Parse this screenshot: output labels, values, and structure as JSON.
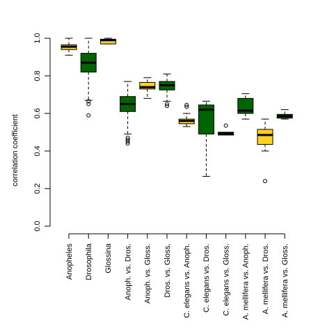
{
  "chart_data": {
    "type": "boxplot",
    "ylabel": "correlation coefficient",
    "xlabel": "",
    "ylim": [
      0,
      1
    ],
    "yticks": [
      0.0,
      0.2,
      0.4,
      0.6,
      0.8,
      1.0
    ],
    "ytick_labels": [
      "0.0",
      "0.2",
      "0.4",
      "0.6",
      "0.8",
      "1.0"
    ],
    "grid": false,
    "colors": {
      "green": "#006400",
      "yellow": "#FFD21F"
    },
    "boxes": [
      {
        "label": "Anopheles",
        "color": "#FFD21F",
        "whisker_low": 0.91,
        "q1": 0.94,
        "median": 0.955,
        "q3": 0.965,
        "whisker_high": 1.0,
        "outliers": []
      },
      {
        "label": "Drosophila",
        "color": "#006400",
        "whisker_low": 0.67,
        "q1": 0.82,
        "median": 0.87,
        "q3": 0.92,
        "whisker_high": 1.0,
        "outliers": [
          0.59,
          0.65,
          0.665
        ]
      },
      {
        "label": "Glossina",
        "color": "#FFD21F",
        "whisker_low": 0.97,
        "q1": 0.97,
        "median": 0.99,
        "q3": 0.995,
        "whisker_high": 1.0,
        "outliers": []
      },
      {
        "label": "Anoph. vs. Dros.",
        "color": "#006400",
        "whisker_low": 0.49,
        "q1": 0.61,
        "median": 0.65,
        "q3": 0.69,
        "whisker_high": 0.77,
        "outliers": [
          0.44,
          0.45,
          0.46,
          0.47
        ]
      },
      {
        "label": "Anoph. vs. Gloss.",
        "color": "#FFD21F",
        "whisker_low": 0.68,
        "q1": 0.73,
        "median": 0.74,
        "q3": 0.765,
        "whisker_high": 0.79,
        "outliers": []
      },
      {
        "label": "Dros. vs. Gloss.",
        "color": "#006400",
        "whisker_low": 0.665,
        "q1": 0.725,
        "median": 0.75,
        "q3": 0.77,
        "whisker_high": 0.81,
        "outliers": [
          0.64,
          0.65
        ]
      },
      {
        "label": "C. elegans vs. Anoph.",
        "color": "#FFD21F",
        "whisker_low": 0.53,
        "q1": 0.545,
        "median": 0.56,
        "q3": 0.57,
        "whisker_high": 0.6,
        "outliers": [
          0.635,
          0.645
        ]
      },
      {
        "label": "C. elegans vs. Dros.",
        "color": "#006400",
        "whisker_low": 0.265,
        "q1": 0.49,
        "median": 0.62,
        "q3": 0.645,
        "whisker_high": 0.665,
        "outliers": []
      },
      {
        "label": "C. elegans vs. Gloss.",
        "color": "#006400",
        "whisker_low": 0.485,
        "q1": 0.485,
        "median": 0.493,
        "q3": 0.5,
        "whisker_high": 0.5,
        "outliers": [
          0.535
        ]
      },
      {
        "label": "A. mellifera vs. Anoph.",
        "color": "#006400",
        "whisker_low": 0.57,
        "q1": 0.6,
        "median": 0.615,
        "q3": 0.68,
        "whisker_high": 0.705,
        "outliers": []
      },
      {
        "label": "A. mellifera vs. Dros.",
        "color": "#FFD21F",
        "whisker_low": 0.4,
        "q1": 0.435,
        "median": 0.485,
        "q3": 0.515,
        "whisker_high": 0.57,
        "outliers": [
          0.24
        ]
      },
      {
        "label": "A. mellifera vs. Gloss.",
        "color": "#006400",
        "whisker_low": 0.57,
        "q1": 0.575,
        "median": 0.585,
        "q3": 0.595,
        "whisker_high": 0.62,
        "outliers": []
      }
    ]
  }
}
